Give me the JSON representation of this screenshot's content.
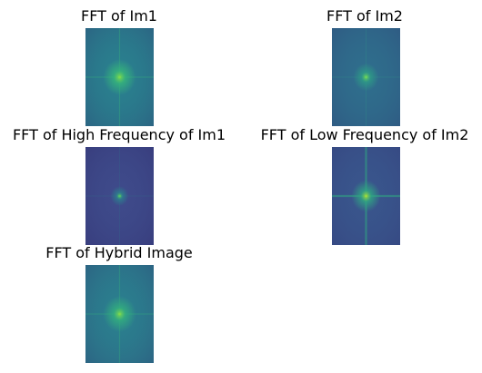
{
  "figure": {
    "panels": [
      {
        "title": "FFT of Im1",
        "colormap": "viridis",
        "base_color": "#2a7f8e",
        "glow_color": "#36b77a",
        "peak_color": "#7ad94f"
      },
      {
        "title": "FFT of Im2",
        "colormap": "viridis",
        "base_color": "#2f6d8c",
        "glow_color": "#2e9d86",
        "peak_color": "#6ad35c"
      },
      {
        "title": "FFT of High Frequency of Im1",
        "colormap": "viridis",
        "base_color": "#3e4a8a",
        "glow_color": "#2c7f8e",
        "peak_color": "#4fc16b"
      },
      {
        "title": "FFT of Low Frequency of Im2",
        "colormap": "viridis",
        "base_color": "#39558c",
        "glow_color": "#2fa982",
        "peak_color": "#9ad93e"
      },
      {
        "title": "FFT of Hybrid Image",
        "colormap": "viridis",
        "base_color": "#2b7e8e",
        "glow_color": "#33b17d",
        "peak_color": "#7bd850"
      }
    ]
  }
}
